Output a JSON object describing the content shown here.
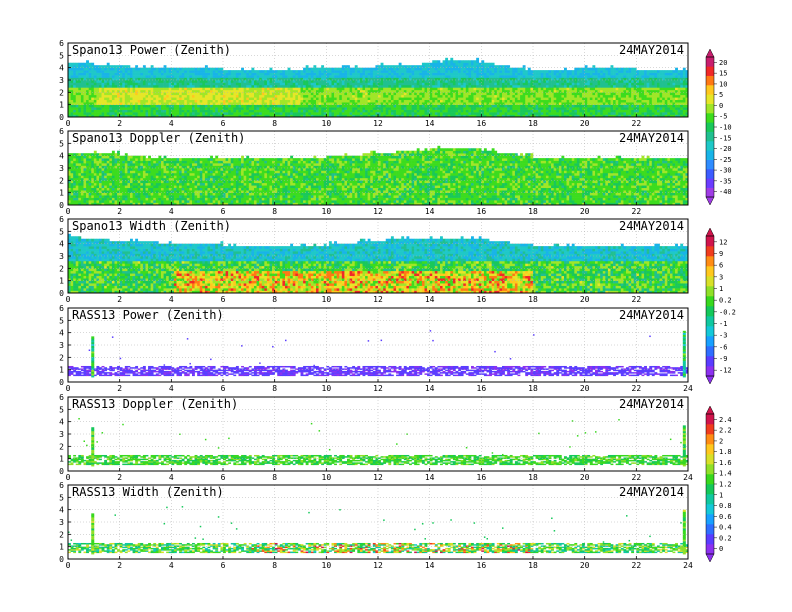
{
  "figure": {
    "date": "24MAY2014",
    "x_ticks": [
      "0",
      "2",
      "4",
      "6",
      "8",
      "10",
      "12",
      "14",
      "16",
      "18",
      "20",
      "22"
    ],
    "x_ticks_full": [
      "0",
      "2",
      "4",
      "6",
      "8",
      "10",
      "12",
      "14",
      "16",
      "18",
      "20",
      "22",
      "24"
    ],
    "y_ticks": [
      "0",
      "1",
      "2",
      "3",
      "4",
      "5",
      "6"
    ]
  },
  "colorbars": [
    {
      "id": "cb1",
      "labels": [
        "20",
        "15",
        "10",
        "5",
        "0",
        "-5",
        "-10",
        "-15",
        "-20",
        "-25",
        "-30",
        "-35",
        "-40"
      ]
    },
    {
      "id": "cb2",
      "labels": [
        "12",
        "9",
        "6",
        "3",
        "1",
        "0.2",
        "-0.2",
        "-1",
        "-3",
        "-6",
        "-9",
        "-12"
      ]
    },
    {
      "id": "cb3",
      "labels": [
        "2.4",
        "2.2",
        "2",
        "1.8",
        "1.6",
        "1.4",
        "1.2",
        "1",
        "0.8",
        "0.6",
        "0.4",
        "0.2",
        "0"
      ]
    }
  ],
  "palette": {
    "top_cmap": [
      "#a03ce6",
      "#6b3cff",
      "#3c5cff",
      "#2f8cff",
      "#18b4e8",
      "#1ec8c8",
      "#20c090",
      "#19c85a",
      "#3cdc1e",
      "#a0e628",
      "#e6e628",
      "#ffc81e",
      "#ff7814",
      "#f02828",
      "#c81e6e"
    ],
    "rass_cmap": [
      "#8c30f0",
      "#5a3cff",
      "#2f6eff",
      "#18a0ff",
      "#14c8d8",
      "#10c8a0",
      "#14c85a",
      "#38d81e",
      "#90e028",
      "#d8e028",
      "#ffc81e",
      "#ff8c14",
      "#f03c1e",
      "#d0144c"
    ]
  },
  "chart_data": [
    {
      "type": "heatmap",
      "title": "Spano13 Power (Zenith)",
      "date": "24MAY2014",
      "x_range": [
        0,
        24
      ],
      "y_range": [
        0,
        6
      ],
      "echo_top_km": [
        [
          0,
          4.3
        ],
        [
          1,
          4.2
        ],
        [
          3,
          3.9
        ],
        [
          6,
          3.8
        ],
        [
          9,
          3.8
        ],
        [
          13.3,
          4.1
        ],
        [
          15.2,
          4.6
        ],
        [
          18,
          3.7
        ],
        [
          21,
          3.9
        ],
        [
          24,
          3.6
        ]
      ],
      "bands": [
        {
          "y": [
            0,
            1
          ],
          "level": 0.5
        },
        {
          "y": [
            1,
            2
          ],
          "level": 0.75
        },
        {
          "y": [
            2,
            3
          ],
          "level": 0.4
        },
        {
          "y": [
            3,
            4.3
          ],
          "level": 0.3
        }
      ]
    },
    {
      "type": "heatmap",
      "title": "Spano13 Doppler (Zenith)",
      "date": "24MAY2014",
      "x_range": [
        0,
        24
      ],
      "y_range": [
        0,
        6
      ],
      "echo_top_km": [
        [
          0,
          4.2
        ],
        [
          2,
          4.0
        ],
        [
          3,
          3.8
        ],
        [
          10,
          3.8
        ],
        [
          13.3,
          4.3
        ],
        [
          15.2,
          4.6
        ],
        [
          18,
          3.8
        ],
        [
          24,
          3.6
        ]
      ]
    },
    {
      "type": "heatmap",
      "title": "Spano13 Width (Zenith)",
      "date": "24MAY2014",
      "x_range": [
        0,
        24
      ],
      "y_range": [
        0,
        6
      ],
      "echo_top_km": [
        [
          0,
          4.5
        ],
        [
          2,
          4.1
        ],
        [
          6,
          3.8
        ],
        [
          10,
          3.8
        ],
        [
          13.3,
          4.4
        ],
        [
          15.2,
          4.4
        ],
        [
          18,
          3.8
        ],
        [
          24,
          3.7
        ]
      ]
    },
    {
      "type": "heatmap",
      "title": "RASS13 Power (Zenith)",
      "date": "24MAY2014",
      "x_range": [
        0,
        24
      ],
      "y_range": [
        0,
        6
      ],
      "main_band_km": [
        0.5,
        1.3
      ],
      "spikes_hours": [
        0.9,
        23.8
      ],
      "spike_top_km": [
        3.6,
        4.0
      ]
    },
    {
      "type": "heatmap",
      "title": "RASS13 Doppler (Zenith)",
      "date": "24MAY2014",
      "x_range": [
        0,
        24
      ],
      "y_range": [
        0,
        6
      ],
      "main_band_km": [
        0.5,
        1.3
      ],
      "spikes_hours": [
        0.9,
        23.8
      ],
      "spike_top_km": [
        3.5,
        3.6
      ]
    },
    {
      "type": "heatmap",
      "title": "RASS13 Width (Zenith)",
      "date": "24MAY2014",
      "x_range": [
        0,
        24
      ],
      "y_range": [
        0,
        6
      ],
      "main_band_km": [
        0.5,
        1.3
      ],
      "spikes_hours": [
        0.9,
        23.8
      ],
      "spike_top_km": [
        3.6,
        3.9
      ]
    }
  ]
}
